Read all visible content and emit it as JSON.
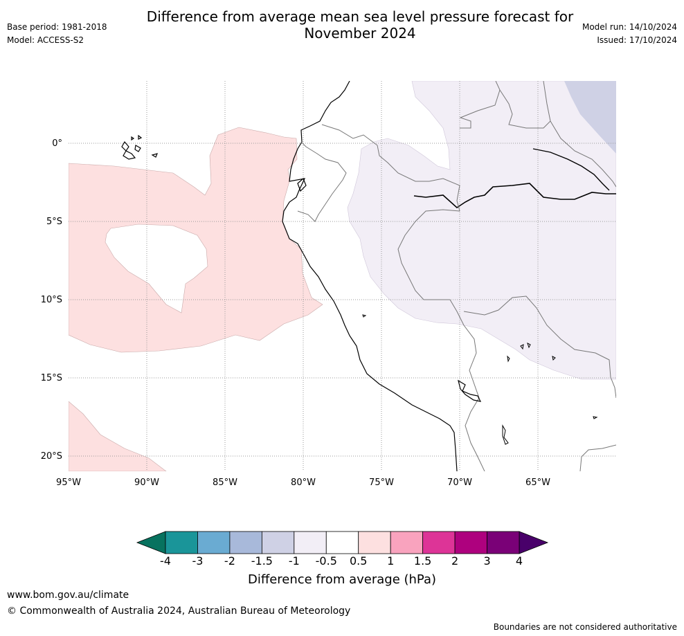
{
  "title_line1": "Difference from average mean sea level pressure forecast for",
  "title_line2": "November 2024",
  "base_period": "Base period: 1981-2018",
  "model": "Model: ACCESS-S2",
  "model_run": "Model run: 14/10/2024",
  "issued": "Issued: 17/10/2024",
  "lat_labels": [
    "0°",
    "5°S",
    "10°S",
    "15°S",
    "20°S"
  ],
  "lon_labels": [
    "95°W",
    "90°W",
    "85°W",
    "80°W",
    "75°W",
    "70°W",
    "65°W"
  ],
  "colorbar": {
    "title": "Difference from average (hPa)",
    "ticks": [
      "-4",
      "-3",
      "-2",
      "-1.5",
      "-1",
      "-0.5",
      "0.5",
      "1",
      "1.5",
      "2",
      "3",
      "4"
    ],
    "colors": [
      "#1a9599",
      "#6aabd2",
      "#a8b9da",
      "#cfd1e5",
      "#f2eef6",
      "#ffffff",
      "#fde0e0",
      "#f9a3be",
      "#dd3497",
      "#ae017e",
      "#7a0177"
    ],
    "low_color": "#07725f",
    "high_color": "#49006a"
  },
  "anomaly_colors": {
    "positive_small": "#fde0e0",
    "negative_small": "#f2eef6",
    "negative_medium": "#cfd1e5"
  },
  "website": "www.bom.gov.au/climate",
  "copyright": "© Commonwealth of Australia 2024, Australian Bureau of Meteorology",
  "disclaimer": "Boundaries are not considered authoritative"
}
